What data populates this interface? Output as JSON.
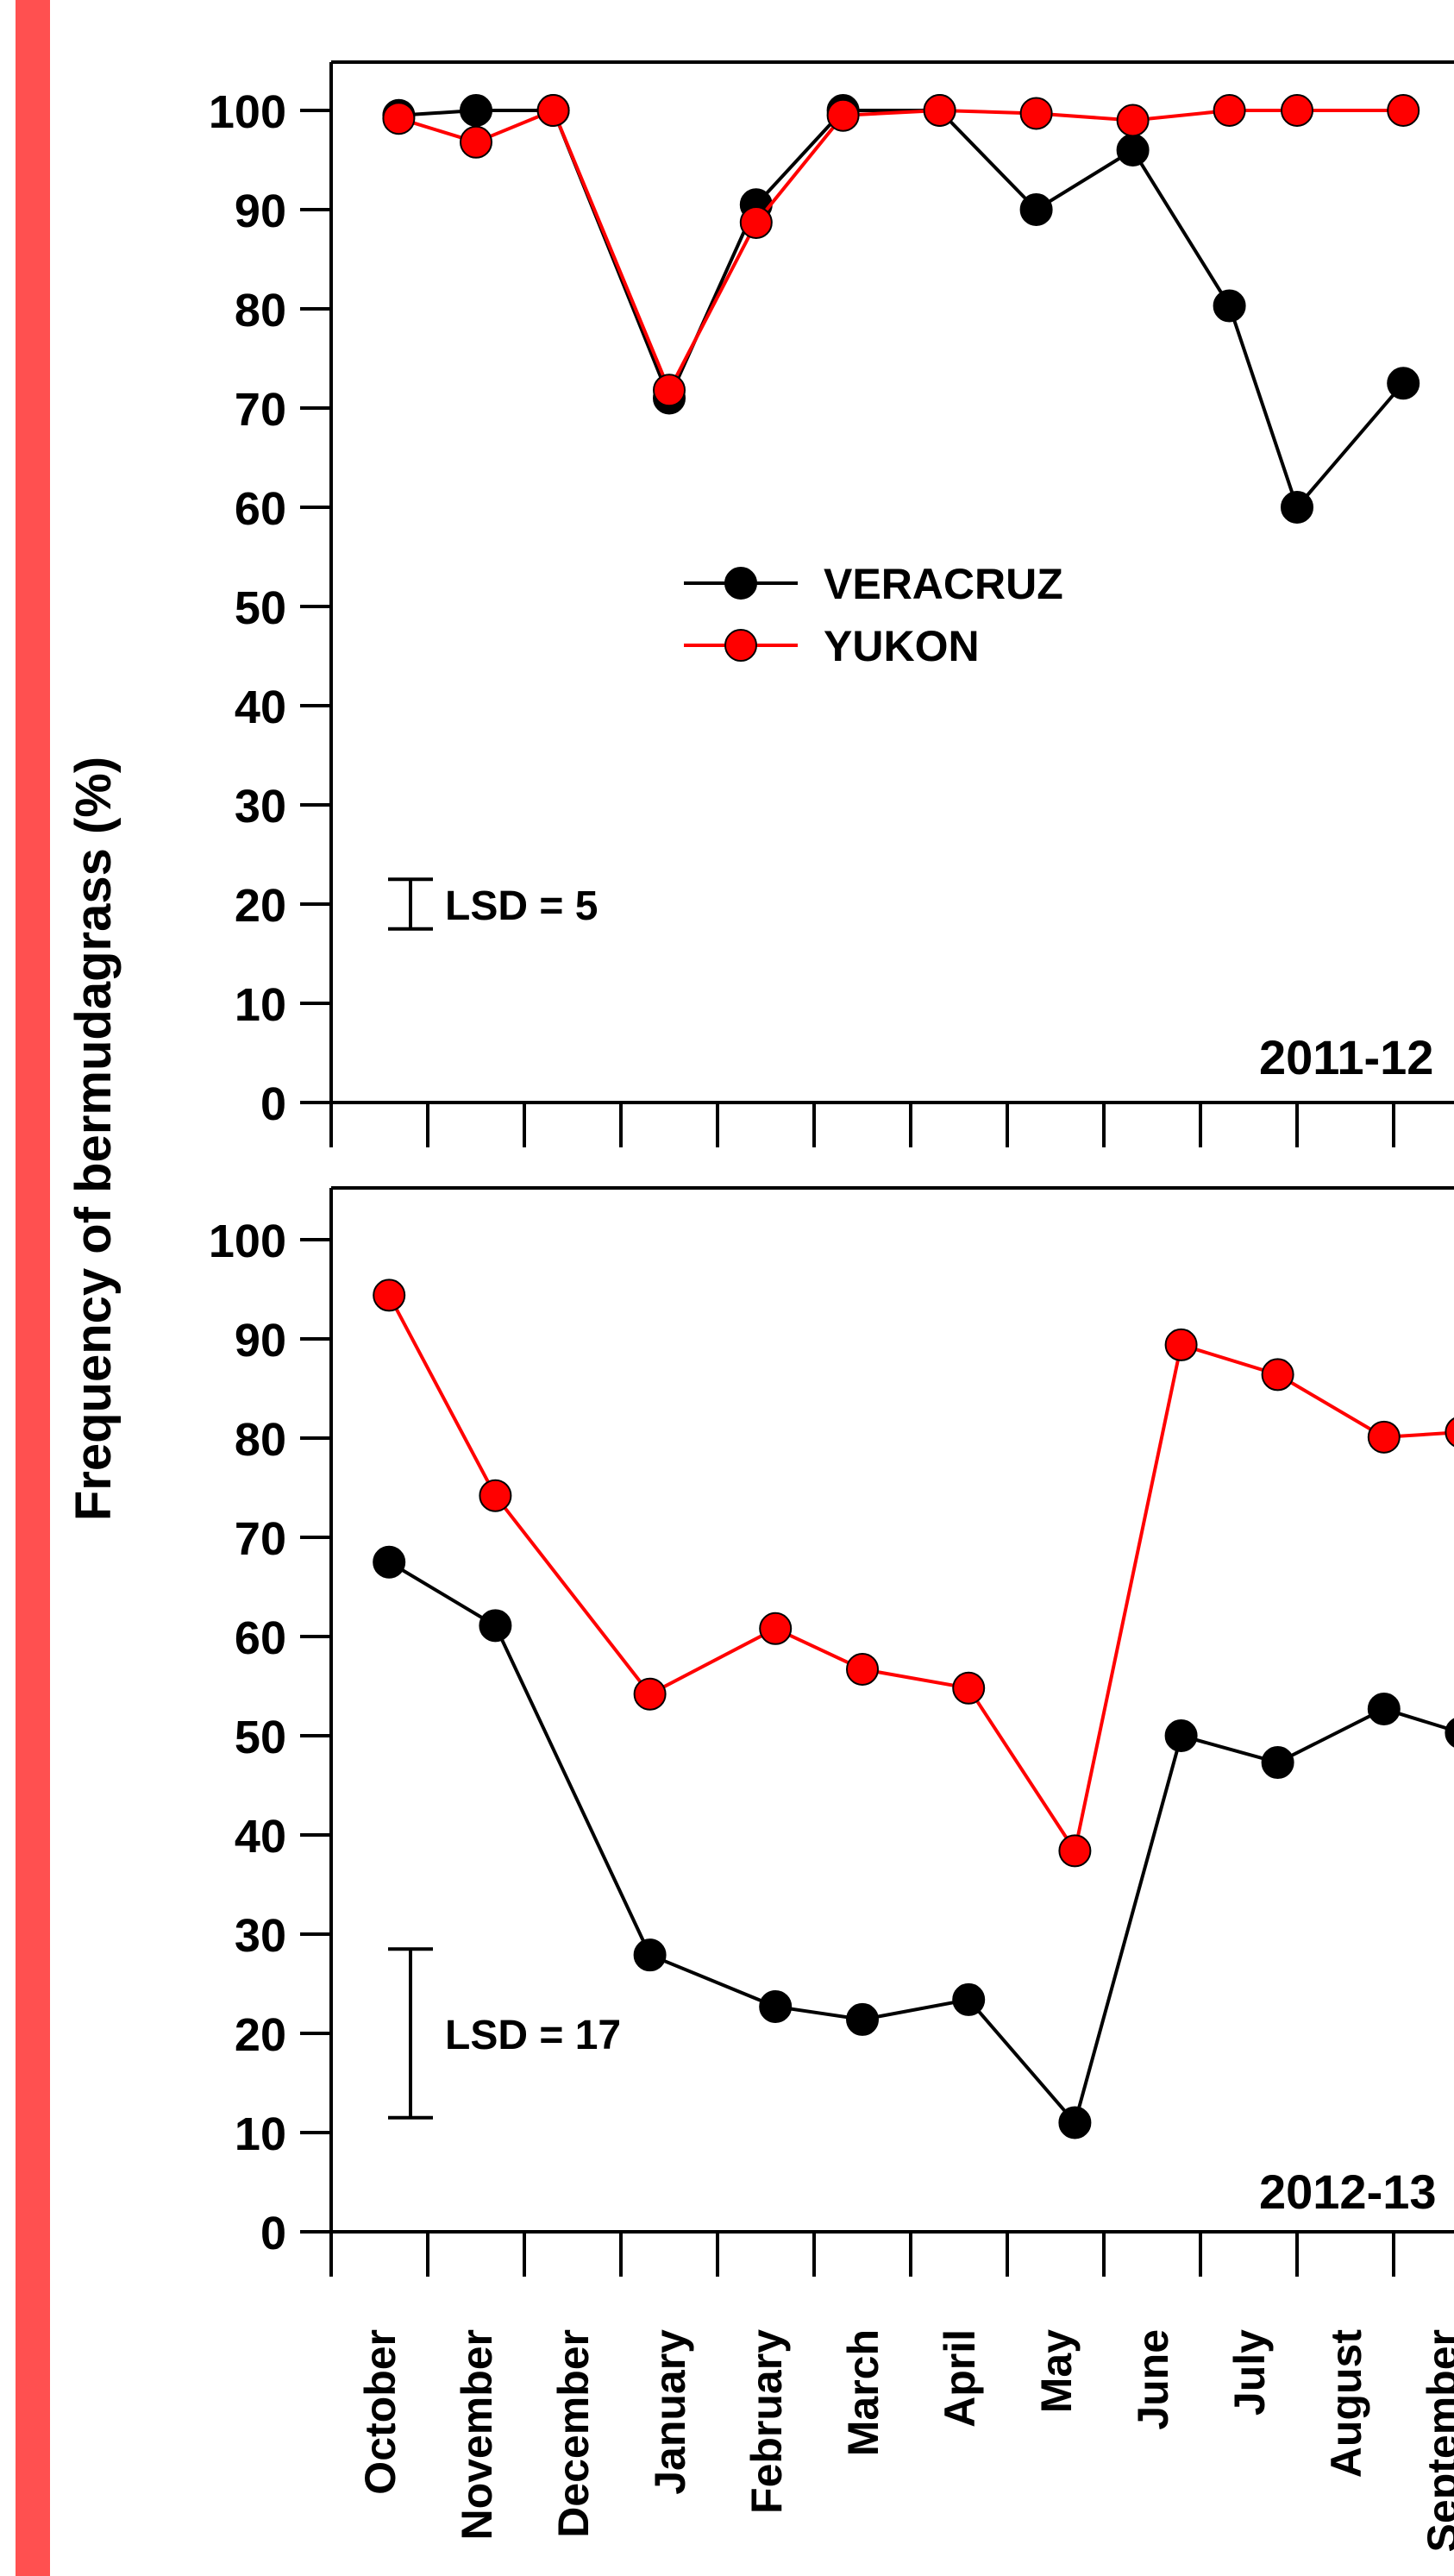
{
  "colors": {
    "accent_bar": "#FF5050",
    "veracruz": "#000000",
    "yukon": "#FF0000"
  },
  "ylabel": "Frequency of bermudagrass (%)",
  "months": [
    "October",
    "November",
    "December",
    "January",
    "February",
    "March",
    "April",
    "May",
    "June",
    "July",
    "August",
    "September"
  ],
  "legend": {
    "veracruz": "VERACRUZ",
    "yukon": "YUKON"
  },
  "chart_data": [
    {
      "type": "line",
      "title": "2011-12",
      "xlabel": "",
      "ylabel": "Frequency of bermudagrass (%)",
      "ylim": [
        0,
        100
      ],
      "yticks": [
        0,
        10,
        20,
        30,
        40,
        50,
        60,
        70,
        80,
        90,
        100
      ],
      "xlim": [
        0,
        12
      ],
      "lsd": {
        "label": "LSD = 5",
        "value": 5,
        "center": 20,
        "x": 1.0
      },
      "series": [
        {
          "name": "VERACRUZ",
          "color": "#000000",
          "x": [
            0.7,
            1.5,
            2.3,
            3.5,
            4.4,
            5.3,
            6.3,
            7.3,
            8.3,
            9.3,
            10.0,
            11.1
          ],
          "y": [
            99.5,
            100,
            100,
            71,
            90.5,
            100,
            100,
            90,
            96,
            80.3,
            60,
            72.5
          ]
        },
        {
          "name": "YUKON",
          "color": "#FF0000",
          "x": [
            0.7,
            1.5,
            2.3,
            3.5,
            4.4,
            5.3,
            6.3,
            7.3,
            8.3,
            9.3,
            10.0,
            11.1
          ],
          "y": [
            99.2,
            96.8,
            100,
            71.8,
            88.7,
            99.5,
            100,
            99.7,
            99,
            100,
            100,
            100
          ]
        }
      ]
    },
    {
      "type": "line",
      "title": "2012-13",
      "xlabel": "",
      "ylabel": "Frequency of bermudagrass (%)",
      "ylim": [
        0,
        100
      ],
      "yticks": [
        0,
        10,
        20,
        30,
        40,
        50,
        60,
        70,
        80,
        90,
        100
      ],
      "xlim": [
        0,
        12
      ],
      "lsd": {
        "label": "LSD = 17",
        "value": 17,
        "center": 20,
        "x": 1.0
      },
      "series": [
        {
          "name": "VERACRUZ",
          "color": "#000000",
          "x": [
            0.6,
            1.7,
            3.3,
            4.6,
            5.5,
            6.6,
            7.7,
            8.8,
            9.8,
            10.9,
            11.7
          ],
          "y": [
            67.5,
            61.1,
            27.9,
            22.7,
            21.4,
            23.4,
            11,
            50,
            47.3,
            52.7,
            50.3
          ]
        },
        {
          "name": "YUKON",
          "color": "#FF0000",
          "x": [
            0.6,
            1.7,
            3.3,
            4.6,
            5.5,
            6.6,
            7.7,
            8.8,
            9.8,
            10.9,
            11.7
          ],
          "y": [
            94.4,
            74.2,
            54.2,
            60.8,
            56.7,
            54.8,
            38.4,
            89.4,
            86.4,
            80.1,
            80.6
          ]
        }
      ]
    }
  ]
}
